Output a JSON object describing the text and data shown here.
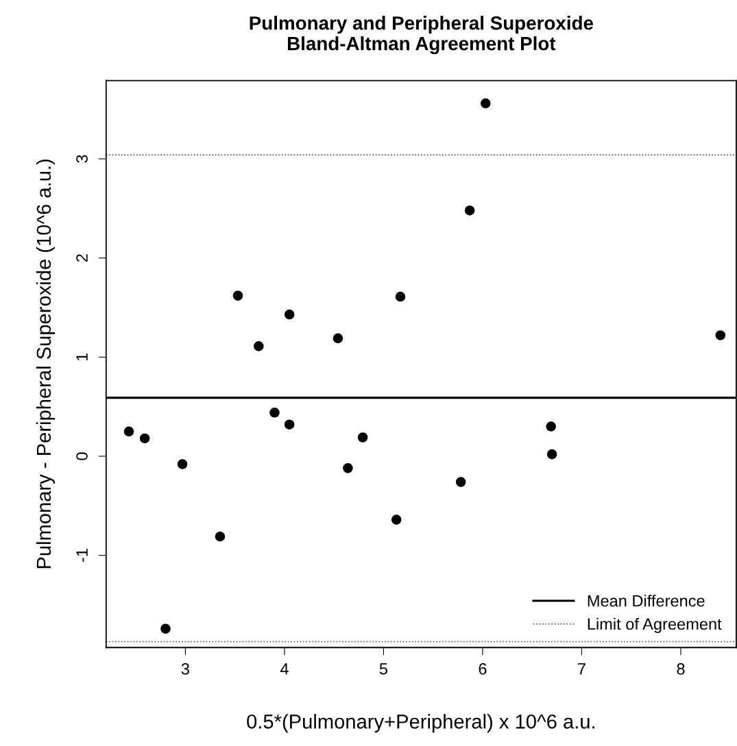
{
  "chart_data": {
    "type": "scatter",
    "title": "Pulmonary and Peripheral Superoxide\nBland-Altman Agreement Plot",
    "xlabel": "0.5*(Pulmonary+Peripheral) x 10^6 a.u.",
    "ylabel": "Pulmonary - Peripheral Superoxide (10^6 a.u.)",
    "x": [
      2.43,
      2.59,
      2.97,
      2.8,
      3.35,
      3.53,
      3.74,
      3.9,
      4.05,
      4.05,
      4.54,
      4.64,
      4.79,
      5.13,
      5.17,
      5.78,
      5.87,
      6.03,
      6.69,
      6.7,
      8.4
    ],
    "series": [
      {
        "color": "#000000",
        "values": [
          0.25,
          0.18,
          -0.08,
          -1.74,
          -0.81,
          1.62,
          1.11,
          0.44,
          1.43,
          0.32,
          1.19,
          -0.12,
          0.19,
          -0.64,
          1.61,
          -0.26,
          2.48,
          3.56,
          0.3,
          0.02,
          1.22
        ]
      }
    ],
    "marker": "circle",
    "xlim": [
      2.2,
      8.56
    ],
    "ylim": [
      -1.93,
      3.79
    ],
    "xticks": [
      3,
      4,
      5,
      6,
      7,
      8
    ],
    "yticks": [
      -1,
      0,
      1,
      2,
      3
    ],
    "ref_lines": [
      {
        "axis": "y",
        "value": 0.59,
        "label": "Mean Difference",
        "color": "#000000",
        "line_style": "solid"
      },
      {
        "axis": "y",
        "value": 3.04,
        "label": "Limit of Agreement",
        "color": "#555555",
        "line_style": "dotted"
      },
      {
        "axis": "y",
        "value": -1.87,
        "color": "#555555",
        "line_style": "dotted"
      }
    ],
    "grid": false,
    "legend": "bottom right"
  }
}
